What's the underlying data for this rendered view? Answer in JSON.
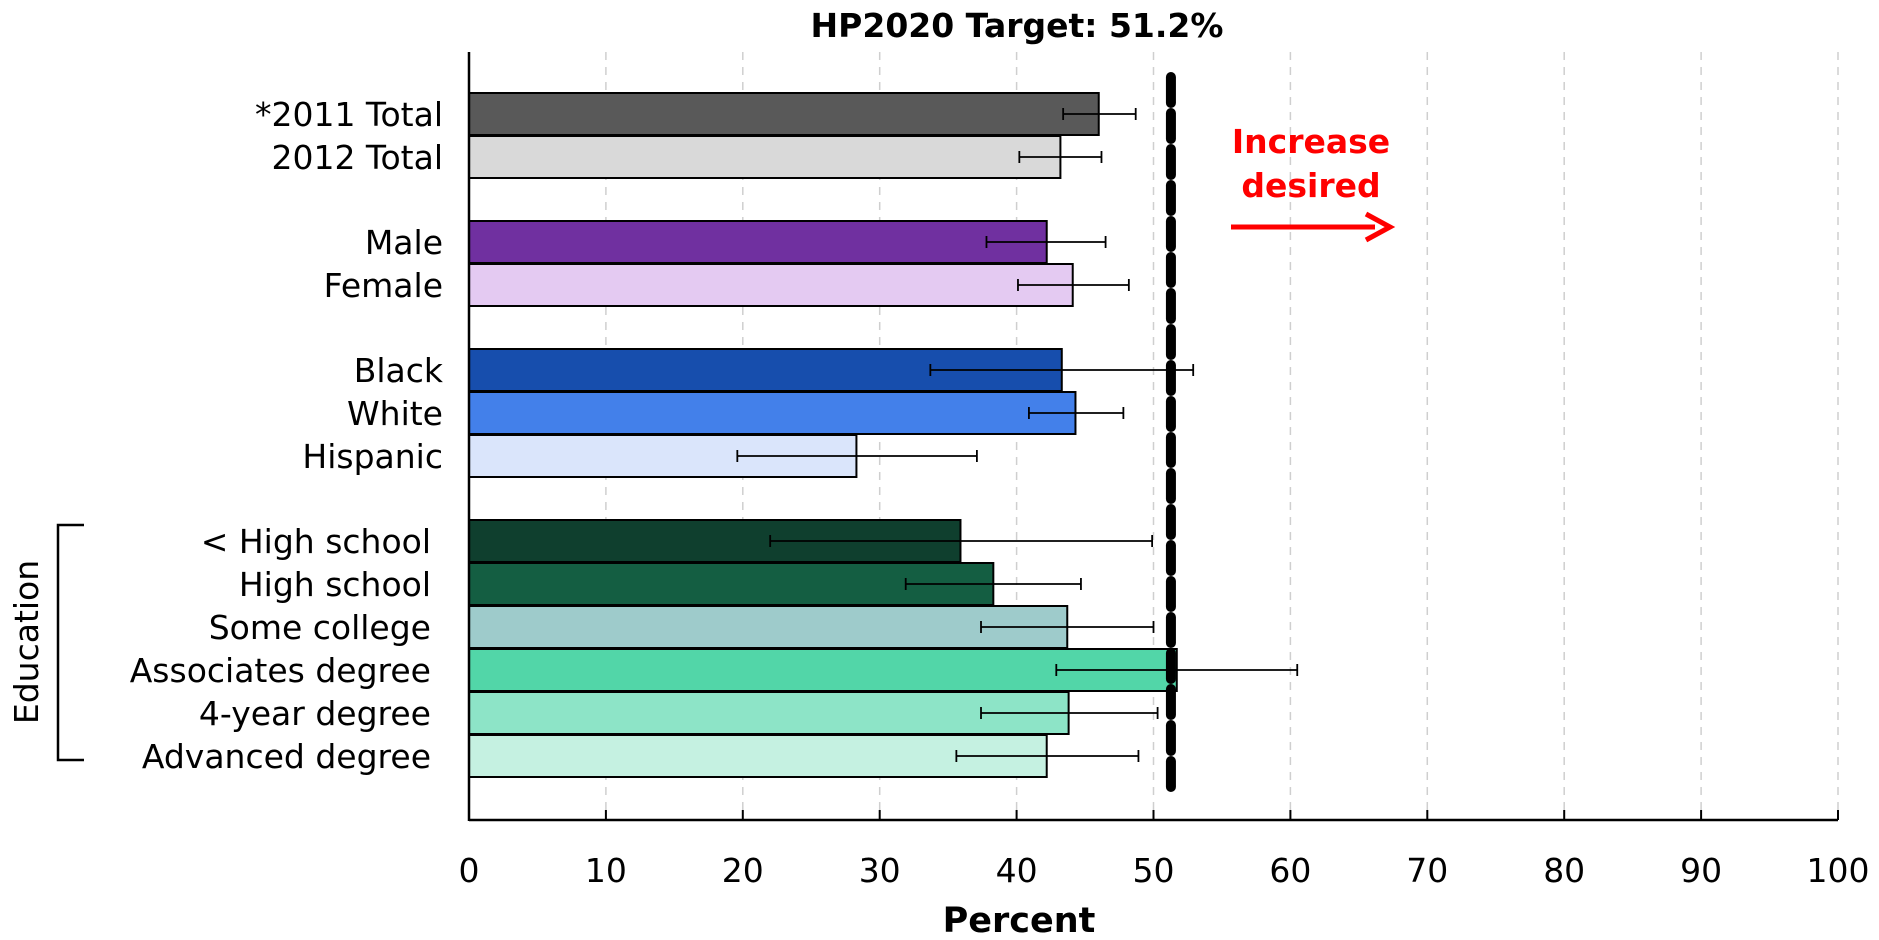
{
  "chart_data": {
    "type": "bar",
    "orientation": "horizontal",
    "title": "HP2020 Target: 51.2%",
    "xlabel": "Percent",
    "ylabel": "",
    "xlim": [
      0,
      100
    ],
    "xticks": [
      0,
      10,
      20,
      30,
      40,
      50,
      60,
      70,
      80,
      90,
      100
    ],
    "grid": "vertical-dashed",
    "target": {
      "value": 51.2
    },
    "annotation": {
      "line1": "Increase",
      "line2": "desired",
      "color": "#ff0000"
    },
    "group_label": "Education",
    "categories": [
      {
        "label": "*2011 Total",
        "value": 46.0,
        "ci": [
          43.4,
          48.7
        ],
        "color": "#595959"
      },
      {
        "label": "2012 Total",
        "value": 43.2,
        "ci": [
          40.2,
          46.2
        ],
        "color": "#d9d9d9"
      },
      {
        "label": "Male",
        "value": 42.2,
        "ci": [
          37.8,
          46.5
        ],
        "color": "#7030a0"
      },
      {
        "label": "Female",
        "value": 44.1,
        "ci": [
          40.1,
          48.2
        ],
        "color": "#e4caf2"
      },
      {
        "label": "Black",
        "value": 43.3,
        "ci": [
          33.7,
          52.9
        ],
        "color": "#174ead"
      },
      {
        "label": "White",
        "value": 44.3,
        "ci": [
          40.9,
          47.8
        ],
        "color": "#4380ea"
      },
      {
        "label": "Hispanic",
        "value": 28.3,
        "ci": [
          19.6,
          37.1
        ],
        "color": "#dae5fb"
      },
      {
        "label": "< High school",
        "value": 35.9,
        "ci": [
          22.0,
          49.9
        ],
        "color": "#0f3f2e"
      },
      {
        "label": "High school",
        "value": 38.3,
        "ci": [
          31.9,
          44.7
        ],
        "color": "#145e42"
      },
      {
        "label": "Some college",
        "value": 43.7,
        "ci": [
          37.4,
          50.0
        ],
        "color": "#9ecbcb"
      },
      {
        "label": "Associates degree",
        "value": 51.7,
        "ci": [
          42.9,
          60.5
        ],
        "color": "#52d6a8"
      },
      {
        "label": "4-year degree",
        "value": 43.8,
        "ci": [
          37.4,
          50.3
        ],
        "color": "#8de4c7"
      },
      {
        "label": "Advanced degree",
        "value": 42.2,
        "ci": [
          35.6,
          48.9
        ],
        "color": "#c5f1e1"
      }
    ]
  }
}
